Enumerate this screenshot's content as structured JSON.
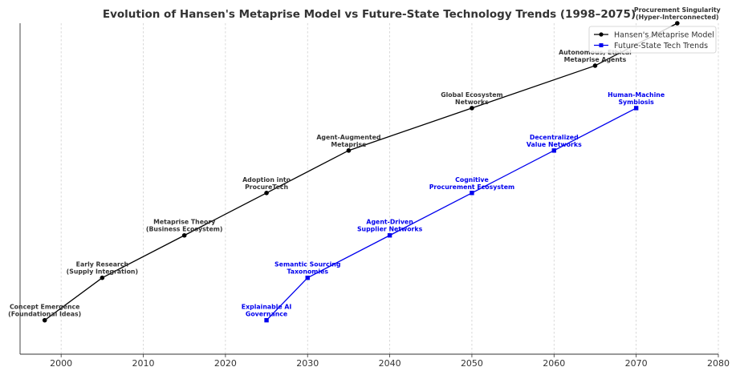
{
  "chart_data": {
    "type": "line",
    "title": "Evolution of Hansen's Metaprise Model vs Future-State Technology Trends (1998–2075)",
    "xlabel": "",
    "ylabel": "",
    "xlim": [
      1995,
      2080
    ],
    "ylim": [
      0.2,
      8.0
    ],
    "x_ticks": [
      2000,
      2010,
      2020,
      2030,
      2040,
      2050,
      2060,
      2070,
      2080
    ],
    "grid": "vertical-dashed",
    "legend_position": "top-right",
    "series": [
      {
        "name": "Hansen's Metaprise Model",
        "color": "#000000",
        "marker": "circle",
        "points": [
          {
            "x": 1998,
            "y": 1,
            "label": [
              "Concept Emergence",
              "(Foundational Ideas)"
            ]
          },
          {
            "x": 2005,
            "y": 2,
            "label": [
              "Early Research",
              "(Supply Integration)"
            ]
          },
          {
            "x": 2015,
            "y": 3,
            "label": [
              "Metaprise Theory",
              "(Business Ecosystem)"
            ]
          },
          {
            "x": 2025,
            "y": 4,
            "label": [
              "Adoption into",
              "ProcureTech"
            ]
          },
          {
            "x": 2035,
            "y": 5,
            "label": [
              "Agent-Augmented",
              "Metaprise"
            ]
          },
          {
            "x": 2050,
            "y": 6,
            "label": [
              "Global Ecosystem",
              "Networks"
            ]
          },
          {
            "x": 2065,
            "y": 7,
            "label": [
              "Autonomous, Ethical",
              "Metaprise Agents"
            ]
          },
          {
            "x": 2075,
            "y": 8,
            "label": [
              "Procurement Singularity",
              "(Hyper-Interconnected)"
            ]
          }
        ]
      },
      {
        "name": "Future-State Tech Trends",
        "color": "#0000ee",
        "marker": "square",
        "points": [
          {
            "x": 2025,
            "y": 1,
            "label": [
              "Explainable AI",
              "Governance"
            ]
          },
          {
            "x": 2030,
            "y": 2,
            "label": [
              "Semantic Sourcing",
              "Taxonomies"
            ]
          },
          {
            "x": 2040,
            "y": 3,
            "label": [
              "Agent-Driven",
              "Supplier Networks"
            ]
          },
          {
            "x": 2050,
            "y": 4,
            "label": [
              "Cognitive",
              "Procurement Ecosystem"
            ]
          },
          {
            "x": 2060,
            "y": 5,
            "label": [
              "Decentralized",
              "Value Networks"
            ]
          },
          {
            "x": 2070,
            "y": 6,
            "label": [
              "Human-Machine",
              "Symbiosis"
            ]
          }
        ]
      }
    ]
  }
}
